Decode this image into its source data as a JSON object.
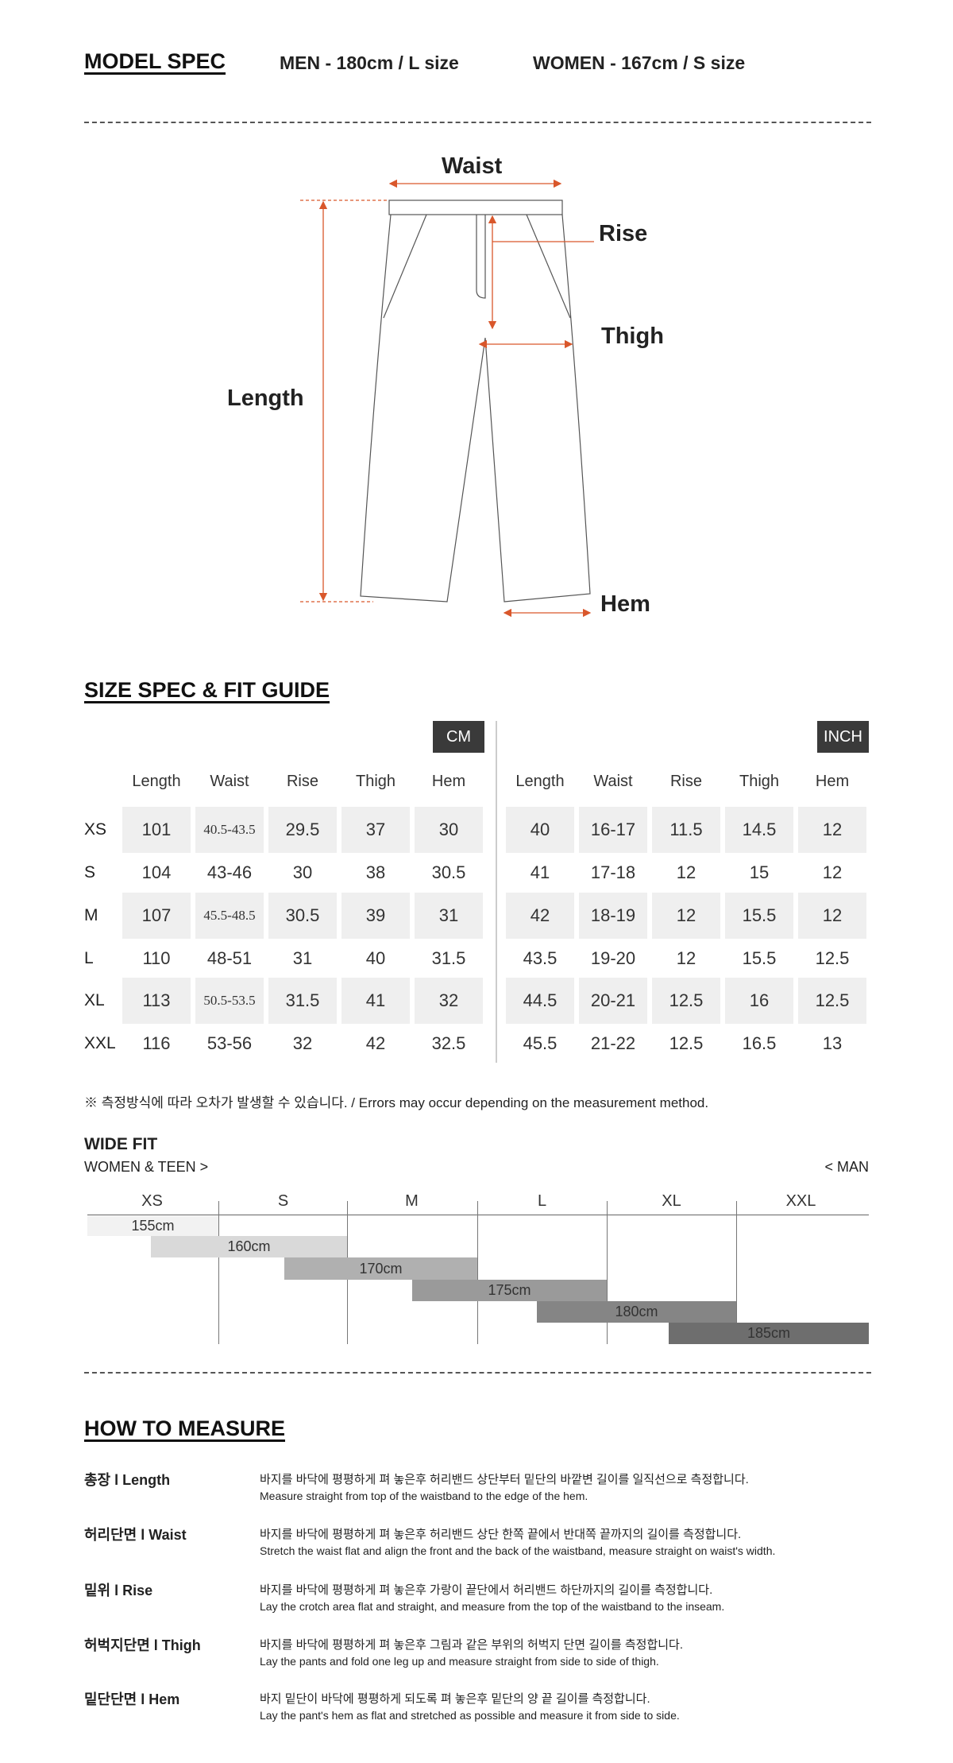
{
  "model_spec": {
    "title": "MODEL SPEC",
    "men": "MEN - 180cm / L size",
    "women": "WOMEN - 167cm / S size"
  },
  "diagram": {
    "waist": "Waist",
    "rise": "Rise",
    "thigh": "Thigh",
    "length": "Length",
    "hem": "Hem",
    "accent_color": "#d9572b"
  },
  "size_spec": {
    "title": "SIZE SPEC  &  FIT GUIDE",
    "cm_label": "CM",
    "inch_label": "INCH",
    "headers": [
      "Length",
      "Waist",
      "Rise",
      "Thigh",
      "Hem"
    ],
    "rows": [
      {
        "size": "XS",
        "cm": [
          "101",
          "40.5-43.5",
          "29.5",
          "37",
          "30"
        ],
        "inch": [
          "40",
          "16-17",
          "11.5",
          "14.5",
          "12"
        ]
      },
      {
        "size": "S",
        "cm": [
          "104",
          "43-46",
          "30",
          "38",
          "30.5"
        ],
        "inch": [
          "41",
          "17-18",
          "12",
          "15",
          "12"
        ]
      },
      {
        "size": "M",
        "cm": [
          "107",
          "45.5-48.5",
          "30.5",
          "39",
          "31"
        ],
        "inch": [
          "42",
          "18-19",
          "12",
          "15.5",
          "12"
        ]
      },
      {
        "size": "L",
        "cm": [
          "110",
          "48-51",
          "31",
          "40",
          "31.5"
        ],
        "inch": [
          "43.5",
          "19-20",
          "12",
          "15.5",
          "12.5"
        ]
      },
      {
        "size": "XL",
        "cm": [
          "113",
          "50.5-53.5",
          "31.5",
          "41",
          "32"
        ],
        "inch": [
          "44.5",
          "20-21",
          "12.5",
          "16",
          "12.5"
        ]
      },
      {
        "size": "XXL",
        "cm": [
          "116",
          "53-56",
          "32",
          "42",
          "32.5"
        ],
        "inch": [
          "45.5",
          "21-22",
          "12.5",
          "16.5",
          "13"
        ]
      }
    ],
    "note": "※ 측정방식에 따라 오차가 발생할 수 있습니다. / Errors may occur depending on the measurement method."
  },
  "fit": {
    "title": "WIDE FIT",
    "left": "WOMEN & TEEN >",
    "right": "< MAN",
    "sizes": [
      "XS",
      "S",
      "M",
      "L",
      "XL",
      "XXL"
    ],
    "heights": [
      "155cm",
      "160cm",
      "170cm",
      "175cm",
      "180cm",
      "185cm"
    ]
  },
  "measure": {
    "title": "HOW TO MEASURE",
    "items": [
      {
        "label": "총장 l Length",
        "ko": "바지를 바닥에 평평하게 펴 놓은후 허리밴드 상단부터 밑단의 바깥변 길이를 일직선으로 측정합니다.",
        "en": "Measure straight from top of the waistband to the edge of the hem."
      },
      {
        "label": "허리단면 l Waist",
        "ko": "바지를 바닥에 평평하게 펴 놓은후 허리밴드 상단 한쪽 끝에서 반대쪽 끝까지의 길이를 측정합니다.",
        "en": "Stretch the waist flat and align the front and the back of the waistband, measure straight on waist's width."
      },
      {
        "label": "밑위 l Rise",
        "ko": "바지를 바닥에 평평하게 펴 놓은후 가랑이 끝단에서 허리밴드 하단까지의 길이를 측정합니다.",
        "en": "Lay the crotch area flat and straight, and measure from the top of the waistband to the inseam."
      },
      {
        "label": "허벅지단면 l Thigh",
        "ko": "바지를 바닥에 평평하게 펴 놓은후 그림과 같은 부위의 허벅지 단면 길이를 측정합니다.",
        "en": "Lay the pants and fold one leg up and measure straight from side to side of thigh."
      },
      {
        "label": "밑단단면 l Hem",
        "ko": "바지 밑단이 바닥에 평평하게 되도록 펴 놓은후 밑단의 양 끝 길이를 측정합니다.",
        "en": "Lay the pant's hem as flat and stretched as possible and measure it from side to side."
      }
    ]
  }
}
